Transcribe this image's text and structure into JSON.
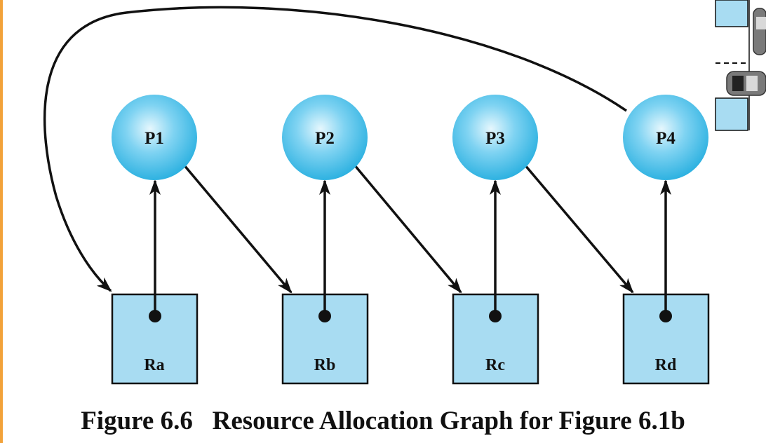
{
  "diagram": {
    "processes": [
      {
        "id": "p1",
        "label": "P1"
      },
      {
        "id": "p2",
        "label": "P2"
      },
      {
        "id": "p3",
        "label": "P3"
      },
      {
        "id": "p4",
        "label": "P4"
      }
    ],
    "resources": [
      {
        "id": "ra",
        "label": "Ra"
      },
      {
        "id": "rb",
        "label": "Rb"
      },
      {
        "id": "rc",
        "label": "Rc"
      },
      {
        "id": "rd",
        "label": "Rd"
      }
    ],
    "edges": [
      {
        "from": "Ra",
        "to": "P1",
        "kind": "assignment"
      },
      {
        "from": "Rb",
        "to": "P2",
        "kind": "assignment"
      },
      {
        "from": "Rc",
        "to": "P3",
        "kind": "assignment"
      },
      {
        "from": "Rd",
        "to": "P4",
        "kind": "assignment"
      },
      {
        "from": "P1",
        "to": "Rb",
        "kind": "request"
      },
      {
        "from": "P2",
        "to": "Rc",
        "kind": "request"
      },
      {
        "from": "P3",
        "to": "Rd",
        "kind": "request"
      },
      {
        "from": "P4",
        "to": "Ra",
        "kind": "request"
      }
    ],
    "colors": {
      "process_fill_light": "#e6f7fd",
      "process_fill_dark": "#2ab0e0",
      "resource_fill": "#a8dcf2",
      "line": "#111111"
    }
  },
  "caption": {
    "figure_number": "Figure 6.6",
    "title": "Resource Allocation Graph for Figure 6.1b"
  }
}
